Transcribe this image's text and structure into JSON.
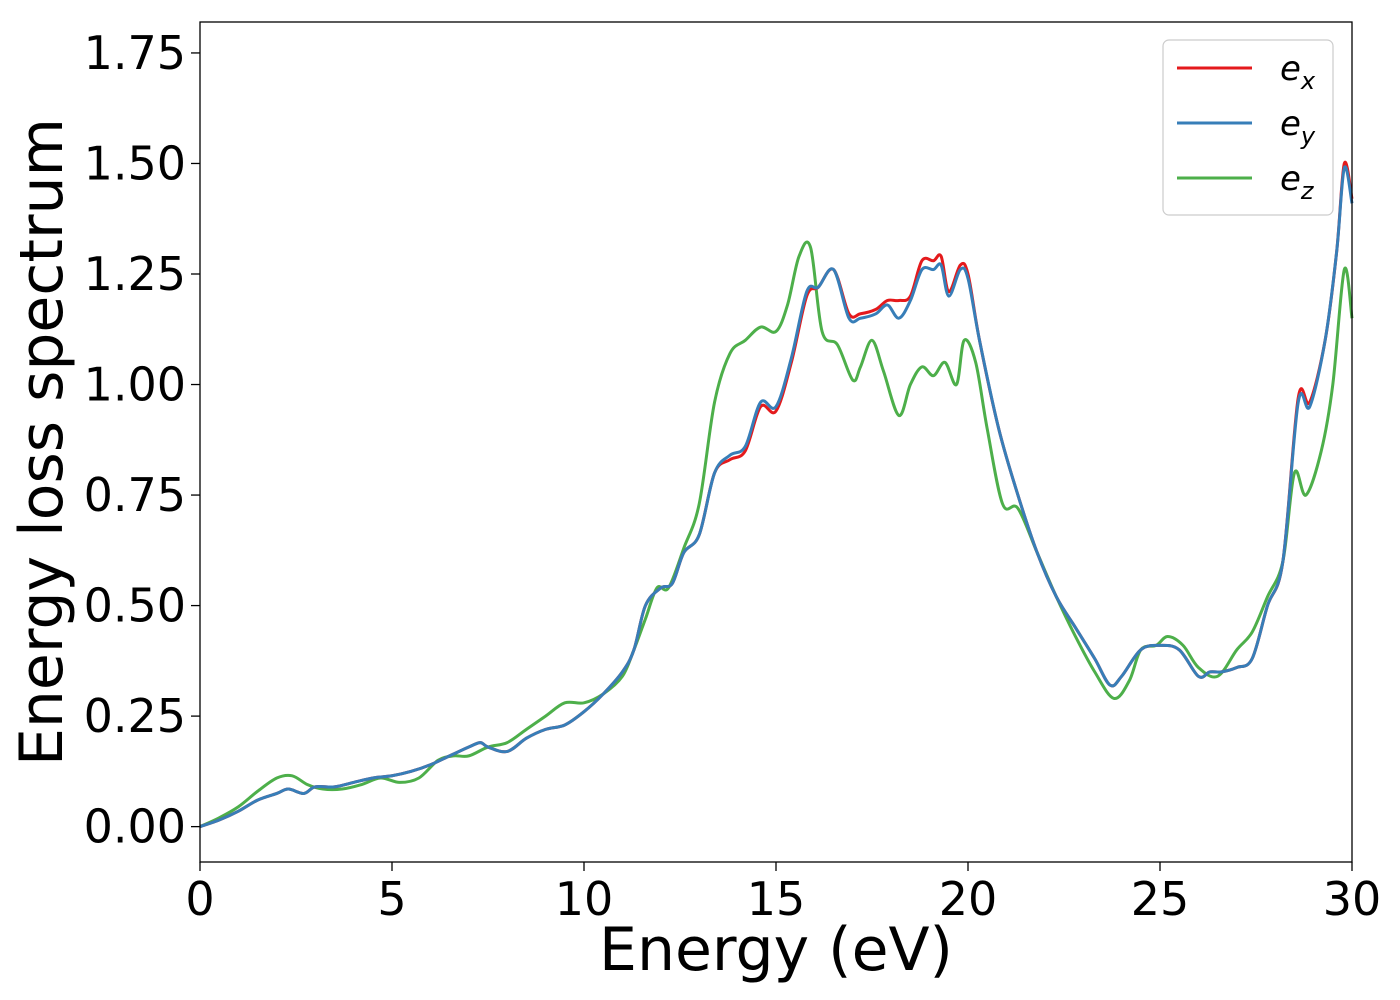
{
  "chart_data": {
    "type": "line",
    "xlabel": "Energy (eV)",
    "ylabel": "Energy loss spectrum",
    "xlim": [
      0,
      30
    ],
    "ylim": [
      -0.08,
      1.82
    ],
    "xticks": [
      0,
      5,
      10,
      15,
      20,
      25,
      30
    ],
    "yticks": [
      0.0,
      0.25,
      0.5,
      0.75,
      1.0,
      1.25,
      1.5,
      1.75
    ],
    "xtick_labels": [
      "0",
      "5",
      "10",
      "15",
      "20",
      "25",
      "30"
    ],
    "ytick_labels": [
      "0.00",
      "0.25",
      "0.50",
      "0.75",
      "1.00",
      "1.25",
      "1.50",
      "1.75"
    ],
    "grid": false,
    "legend_position": "top-right",
    "series": [
      {
        "name": "e",
        "subscript": "x",
        "color": "#e41a1c",
        "points": [
          [
            0,
            0.0
          ],
          [
            0.5,
            0.015
          ],
          [
            1.0,
            0.035
          ],
          [
            1.5,
            0.06
          ],
          [
            2.0,
            0.075
          ],
          [
            2.3,
            0.085
          ],
          [
            2.7,
            0.075
          ],
          [
            3.0,
            0.09
          ],
          [
            3.5,
            0.09
          ],
          [
            4.0,
            0.1
          ],
          [
            4.5,
            0.11
          ],
          [
            5.0,
            0.115
          ],
          [
            5.5,
            0.125
          ],
          [
            6.0,
            0.14
          ],
          [
            6.5,
            0.16
          ],
          [
            7.0,
            0.18
          ],
          [
            7.3,
            0.19
          ],
          [
            7.5,
            0.18
          ],
          [
            8.0,
            0.17
          ],
          [
            8.5,
            0.2
          ],
          [
            9.0,
            0.22
          ],
          [
            9.5,
            0.23
          ],
          [
            10.0,
            0.26
          ],
          [
            10.5,
            0.3
          ],
          [
            11.0,
            0.35
          ],
          [
            11.3,
            0.4
          ],
          [
            11.6,
            0.5
          ],
          [
            12.0,
            0.54
          ],
          [
            12.3,
            0.55
          ],
          [
            12.6,
            0.62
          ],
          [
            13.0,
            0.66
          ],
          [
            13.4,
            0.8
          ],
          [
            13.8,
            0.83
          ],
          [
            14.2,
            0.85
          ],
          [
            14.6,
            0.95
          ],
          [
            15.0,
            0.94
          ],
          [
            15.4,
            1.05
          ],
          [
            15.8,
            1.2
          ],
          [
            16.1,
            1.22
          ],
          [
            16.5,
            1.26
          ],
          [
            16.9,
            1.16
          ],
          [
            17.2,
            1.16
          ],
          [
            17.6,
            1.17
          ],
          [
            17.9,
            1.19
          ],
          [
            18.2,
            1.19
          ],
          [
            18.5,
            1.2
          ],
          [
            18.8,
            1.28
          ],
          [
            19.1,
            1.28
          ],
          [
            19.3,
            1.29
          ],
          [
            19.5,
            1.21
          ],
          [
            19.8,
            1.27
          ],
          [
            20.0,
            1.25
          ],
          [
            20.3,
            1.1
          ],
          [
            20.8,
            0.9
          ],
          [
            21.3,
            0.75
          ],
          [
            21.8,
            0.62
          ],
          [
            22.3,
            0.52
          ],
          [
            22.8,
            0.45
          ],
          [
            23.3,
            0.38
          ],
          [
            23.7,
            0.32
          ],
          [
            24.0,
            0.34
          ],
          [
            24.5,
            0.4
          ],
          [
            25.0,
            0.41
          ],
          [
            25.5,
            0.4
          ],
          [
            26.0,
            0.34
          ],
          [
            26.3,
            0.35
          ],
          [
            26.6,
            0.35
          ],
          [
            27.0,
            0.36
          ],
          [
            27.4,
            0.38
          ],
          [
            27.8,
            0.5
          ],
          [
            28.2,
            0.6
          ],
          [
            28.6,
            0.97
          ],
          [
            28.9,
            0.96
          ],
          [
            29.3,
            1.1
          ],
          [
            29.6,
            1.3
          ],
          [
            29.8,
            1.5
          ],
          [
            30.0,
            1.42
          ]
        ]
      },
      {
        "name": "e",
        "subscript": "y",
        "color": "#377eb8",
        "points": [
          [
            0,
            0.0
          ],
          [
            0.5,
            0.015
          ],
          [
            1.0,
            0.035
          ],
          [
            1.5,
            0.06
          ],
          [
            2.0,
            0.075
          ],
          [
            2.3,
            0.085
          ],
          [
            2.7,
            0.075
          ],
          [
            3.0,
            0.09
          ],
          [
            3.5,
            0.09
          ],
          [
            4.0,
            0.1
          ],
          [
            4.5,
            0.11
          ],
          [
            5.0,
            0.115
          ],
          [
            5.5,
            0.125
          ],
          [
            6.0,
            0.14
          ],
          [
            6.5,
            0.16
          ],
          [
            7.0,
            0.18
          ],
          [
            7.3,
            0.19
          ],
          [
            7.5,
            0.18
          ],
          [
            8.0,
            0.17
          ],
          [
            8.5,
            0.2
          ],
          [
            9.0,
            0.22
          ],
          [
            9.5,
            0.23
          ],
          [
            10.0,
            0.26
          ],
          [
            10.5,
            0.3
          ],
          [
            11.0,
            0.35
          ],
          [
            11.3,
            0.4
          ],
          [
            11.6,
            0.5
          ],
          [
            12.0,
            0.54
          ],
          [
            12.3,
            0.55
          ],
          [
            12.6,
            0.62
          ],
          [
            13.0,
            0.66
          ],
          [
            13.4,
            0.8
          ],
          [
            13.8,
            0.84
          ],
          [
            14.2,
            0.86
          ],
          [
            14.6,
            0.96
          ],
          [
            15.0,
            0.95
          ],
          [
            15.4,
            1.06
          ],
          [
            15.8,
            1.21
          ],
          [
            16.1,
            1.22
          ],
          [
            16.5,
            1.26
          ],
          [
            16.9,
            1.15
          ],
          [
            17.2,
            1.15
          ],
          [
            17.6,
            1.16
          ],
          [
            17.9,
            1.18
          ],
          [
            18.2,
            1.15
          ],
          [
            18.5,
            1.19
          ],
          [
            18.8,
            1.26
          ],
          [
            19.1,
            1.26
          ],
          [
            19.3,
            1.27
          ],
          [
            19.5,
            1.2
          ],
          [
            19.8,
            1.26
          ],
          [
            20.0,
            1.24
          ],
          [
            20.3,
            1.1
          ],
          [
            20.8,
            0.9
          ],
          [
            21.3,
            0.75
          ],
          [
            21.8,
            0.62
          ],
          [
            22.3,
            0.52
          ],
          [
            22.8,
            0.45
          ],
          [
            23.3,
            0.38
          ],
          [
            23.7,
            0.32
          ],
          [
            24.0,
            0.34
          ],
          [
            24.5,
            0.4
          ],
          [
            25.0,
            0.41
          ],
          [
            25.5,
            0.4
          ],
          [
            26.0,
            0.34
          ],
          [
            26.3,
            0.35
          ],
          [
            26.6,
            0.35
          ],
          [
            27.0,
            0.36
          ],
          [
            27.4,
            0.38
          ],
          [
            27.8,
            0.5
          ],
          [
            28.2,
            0.6
          ],
          [
            28.6,
            0.96
          ],
          [
            28.9,
            0.95
          ],
          [
            29.3,
            1.1
          ],
          [
            29.6,
            1.3
          ],
          [
            29.8,
            1.49
          ],
          [
            30.0,
            1.41
          ]
        ]
      },
      {
        "name": "e",
        "subscript": "z",
        "color": "#4daf4a",
        "points": [
          [
            0,
            0.0
          ],
          [
            0.5,
            0.02
          ],
          [
            1.0,
            0.045
          ],
          [
            1.5,
            0.08
          ],
          [
            2.0,
            0.11
          ],
          [
            2.4,
            0.115
          ],
          [
            2.8,
            0.095
          ],
          [
            3.2,
            0.085
          ],
          [
            3.7,
            0.085
          ],
          [
            4.2,
            0.095
          ],
          [
            4.7,
            0.11
          ],
          [
            5.2,
            0.1
          ],
          [
            5.7,
            0.11
          ],
          [
            6.2,
            0.15
          ],
          [
            6.6,
            0.16
          ],
          [
            7.0,
            0.16
          ],
          [
            7.5,
            0.18
          ],
          [
            8.0,
            0.19
          ],
          [
            8.5,
            0.22
          ],
          [
            9.0,
            0.25
          ],
          [
            9.5,
            0.28
          ],
          [
            10.0,
            0.28
          ],
          [
            10.5,
            0.3
          ],
          [
            11.0,
            0.34
          ],
          [
            11.3,
            0.4
          ],
          [
            11.6,
            0.47
          ],
          [
            11.9,
            0.54
          ],
          [
            12.2,
            0.54
          ],
          [
            12.6,
            0.63
          ],
          [
            13.0,
            0.73
          ],
          [
            13.4,
            0.96
          ],
          [
            13.8,
            1.07
          ],
          [
            14.2,
            1.1
          ],
          [
            14.6,
            1.13
          ],
          [
            15.0,
            1.12
          ],
          [
            15.3,
            1.18
          ],
          [
            15.6,
            1.29
          ],
          [
            15.9,
            1.31
          ],
          [
            16.2,
            1.12
          ],
          [
            16.6,
            1.09
          ],
          [
            17.0,
            1.01
          ],
          [
            17.2,
            1.04
          ],
          [
            17.5,
            1.1
          ],
          [
            17.8,
            1.03
          ],
          [
            18.2,
            0.93
          ],
          [
            18.5,
            1.0
          ],
          [
            18.8,
            1.04
          ],
          [
            19.1,
            1.02
          ],
          [
            19.4,
            1.05
          ],
          [
            19.7,
            1.0
          ],
          [
            19.9,
            1.1
          ],
          [
            20.2,
            1.05
          ],
          [
            20.5,
            0.9
          ],
          [
            20.9,
            0.73
          ],
          [
            21.3,
            0.72
          ],
          [
            21.8,
            0.62
          ],
          [
            22.3,
            0.52
          ],
          [
            22.8,
            0.43
          ],
          [
            23.3,
            0.35
          ],
          [
            23.8,
            0.29
          ],
          [
            24.2,
            0.33
          ],
          [
            24.5,
            0.4
          ],
          [
            24.9,
            0.41
          ],
          [
            25.2,
            0.43
          ],
          [
            25.6,
            0.41
          ],
          [
            26.0,
            0.36
          ],
          [
            26.5,
            0.34
          ],
          [
            27.0,
            0.4
          ],
          [
            27.4,
            0.44
          ],
          [
            27.8,
            0.52
          ],
          [
            28.2,
            0.6
          ],
          [
            28.5,
            0.8
          ],
          [
            28.8,
            0.75
          ],
          [
            29.2,
            0.85
          ],
          [
            29.5,
            1.0
          ],
          [
            29.8,
            1.26
          ],
          [
            30.0,
            1.15
          ]
        ]
      }
    ]
  }
}
